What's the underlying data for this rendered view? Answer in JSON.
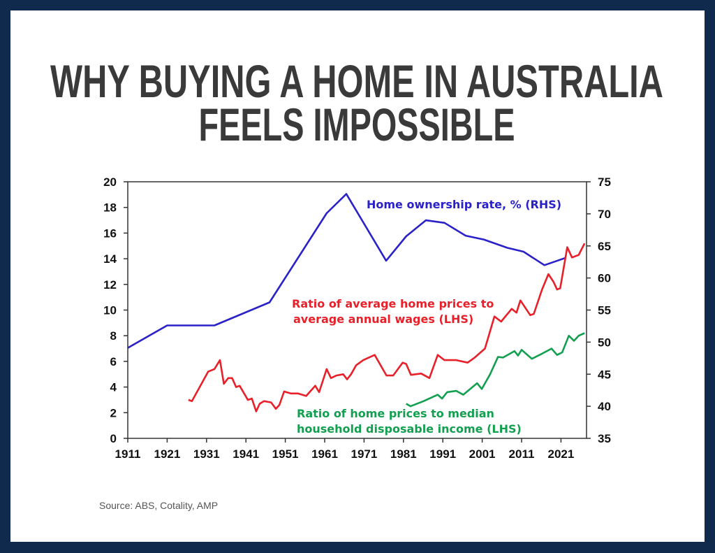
{
  "title_lines": [
    "WHY BUYING A HOME IN AUSTRALIA",
    "FEELS IMPOSSIBLE"
  ],
  "source": "Source: ABS, Cotality, AMP",
  "colors": {
    "border": "#0f2a4d",
    "title": "#3a3a3a",
    "ownership": "#2a22c8",
    "wages_ratio": "#e8202a",
    "income_ratio": "#12a050"
  },
  "chart_data": {
    "type": "line",
    "title": "",
    "xlim": [
      1911,
      2027
    ],
    "x_ticks": [
      "1911",
      "1921",
      "1931",
      "1941",
      "1951",
      "1961",
      "1971",
      "1981",
      "1991",
      "2001",
      "2011",
      "2021"
    ],
    "ylim_left": [
      0,
      20
    ],
    "y_ticks_left": [
      "0",
      "2",
      "4",
      "6",
      "8",
      "10",
      "12",
      "14",
      "16",
      "18",
      "20"
    ],
    "ylim_right": [
      35,
      75
    ],
    "y_ticks_right": [
      "35",
      "40",
      "45",
      "50",
      "55",
      "60",
      "65",
      "70",
      "75"
    ],
    "grid": false,
    "series": [
      {
        "name": "Home ownership rate, % (RHS)",
        "label_lines": [
          "Home ownership rate, %  (RHS)"
        ],
        "axis": "right",
        "color": "#2a22c8",
        "points": [
          [
            1911,
            49.1
          ],
          [
            1921,
            52.6
          ],
          [
            1933,
            52.6
          ],
          [
            1947,
            56.2
          ],
          [
            1961.5,
            70.1
          ],
          [
            1966.5,
            73.1
          ],
          [
            1976.6,
            62.7
          ],
          [
            1981.7,
            66.5
          ],
          [
            1986.7,
            69.0
          ],
          [
            1991.4,
            68.6
          ],
          [
            1996.8,
            66.6
          ],
          [
            2001.4,
            66.0
          ],
          [
            2007.4,
            64.7
          ],
          [
            2011.5,
            64.1
          ],
          [
            2016.8,
            62.0
          ],
          [
            2022,
            63.1
          ]
        ]
      },
      {
        "name": "Ratio of average home prices to average annual wages (LHS)",
        "label_lines": [
          "Ratio of average home prices to",
          "average annual wages (LHS)"
        ],
        "axis": "left",
        "color": "#e8202a",
        "points": [
          [
            1926.4,
            3.0
          ],
          [
            1927.3,
            2.9
          ],
          [
            1931.4,
            5.2
          ],
          [
            1933,
            5.4
          ],
          [
            1934.4,
            6.1
          ],
          [
            1935.4,
            4.25
          ],
          [
            1936.5,
            4.7
          ],
          [
            1937.5,
            4.7
          ],
          [
            1938.5,
            4.0
          ],
          [
            1939.4,
            4.1
          ],
          [
            1941.5,
            3.0
          ],
          [
            1942.5,
            3.1
          ],
          [
            1943.6,
            2.1
          ],
          [
            1944.5,
            2.7
          ],
          [
            1945.6,
            2.9
          ],
          [
            1947.4,
            2.8
          ],
          [
            1948.6,
            2.3
          ],
          [
            1949.5,
            2.6
          ],
          [
            1950.7,
            3.65
          ],
          [
            1952.4,
            3.5
          ],
          [
            1954.2,
            3.5
          ],
          [
            1956.3,
            3.3
          ],
          [
            1958.6,
            4.1
          ],
          [
            1959.6,
            3.6
          ],
          [
            1961.5,
            5.4
          ],
          [
            1962.6,
            4.7
          ],
          [
            1964,
            4.9
          ],
          [
            1965.7,
            5.0
          ],
          [
            1966.7,
            4.6
          ],
          [
            1967.7,
            5.0
          ],
          [
            1969,
            5.7
          ],
          [
            1970.8,
            6.1
          ],
          [
            1973.7,
            6.5
          ],
          [
            1976.7,
            4.9
          ],
          [
            1978.4,
            4.9
          ],
          [
            1980.8,
            5.9
          ],
          [
            1981.7,
            5.8
          ],
          [
            1982.9,
            4.95
          ],
          [
            1985.5,
            5.05
          ],
          [
            1987.6,
            4.7
          ],
          [
            1989.7,
            6.5
          ],
          [
            1991.4,
            6.1
          ],
          [
            1994.4,
            6.1
          ],
          [
            1997.3,
            5.9
          ],
          [
            1999.1,
            6.3
          ],
          [
            2001.7,
            7.0
          ],
          [
            2004.1,
            9.5
          ],
          [
            2005.8,
            9.1
          ],
          [
            2008.5,
            10.1
          ],
          [
            2009.7,
            9.8
          ],
          [
            2010.7,
            10.75
          ],
          [
            2013.2,
            9.6
          ],
          [
            2014.1,
            9.7
          ],
          [
            2016.2,
            11.6
          ],
          [
            2017.8,
            12.8
          ],
          [
            2019.1,
            12.2
          ],
          [
            2020,
            11.6
          ],
          [
            2020.8,
            11.7
          ],
          [
            2022.6,
            14.9
          ],
          [
            2023.8,
            14.1
          ],
          [
            2025.5,
            14.3
          ],
          [
            2027,
            15.2
          ]
        ]
      },
      {
        "name": "Ratio of home prices to median household disposable income (LHS)",
        "label_lines": [
          "Ratio of home prices to median",
          "household disposable income (LHS)"
        ],
        "axis": "left",
        "color": "#12a050",
        "points": [
          [
            1981.7,
            2.7
          ],
          [
            1982.8,
            2.5
          ],
          [
            1986.1,
            2.9
          ],
          [
            1989.7,
            3.4
          ],
          [
            1990.8,
            3.1
          ],
          [
            1992.1,
            3.6
          ],
          [
            1994.4,
            3.7
          ],
          [
            1996.2,
            3.4
          ],
          [
            1999.7,
            4.3
          ],
          [
            2000.9,
            3.85
          ],
          [
            2003,
            5.0
          ],
          [
            2005,
            6.35
          ],
          [
            2006.3,
            6.3
          ],
          [
            2009.2,
            6.8
          ],
          [
            2010.1,
            6.45
          ],
          [
            2011,
            6.9
          ],
          [
            2013.6,
            6.2
          ],
          [
            2016.2,
            6.6
          ],
          [
            2018.6,
            7.0
          ],
          [
            2020,
            6.5
          ],
          [
            2021.3,
            6.7
          ],
          [
            2023,
            8.0
          ],
          [
            2024.3,
            7.6
          ],
          [
            2025.5,
            8.0
          ],
          [
            2027,
            8.2
          ]
        ]
      }
    ]
  }
}
